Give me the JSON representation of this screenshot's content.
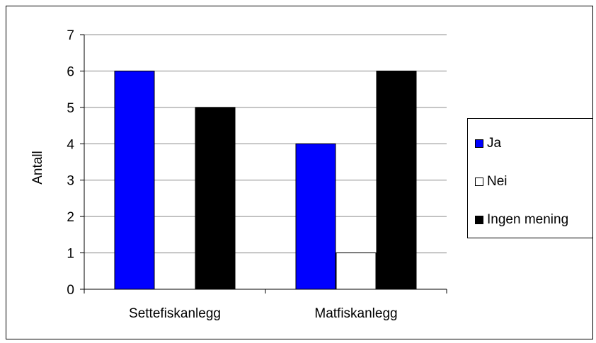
{
  "chart_data": {
    "type": "bar",
    "ylabel": "Antall",
    "xlabel": "",
    "ylim": [
      0,
      7
    ],
    "yticks": [
      "0",
      "1",
      "2",
      "3",
      "4",
      "5",
      "6",
      "7"
    ],
    "categories": [
      "Settefiskanlegg",
      "Matfiskanlegg"
    ],
    "series": [
      {
        "name": "Ja",
        "values": [
          6,
          4
        ],
        "color": "#0000FF"
      },
      {
        "name": "Nei",
        "values": [
          0,
          1
        ],
        "color": "#FFFFFF"
      },
      {
        "name": "Ingen mening",
        "values": [
          5,
          6
        ],
        "color": "#000000"
      }
    ],
    "grid": true,
    "legend_position": "right"
  }
}
